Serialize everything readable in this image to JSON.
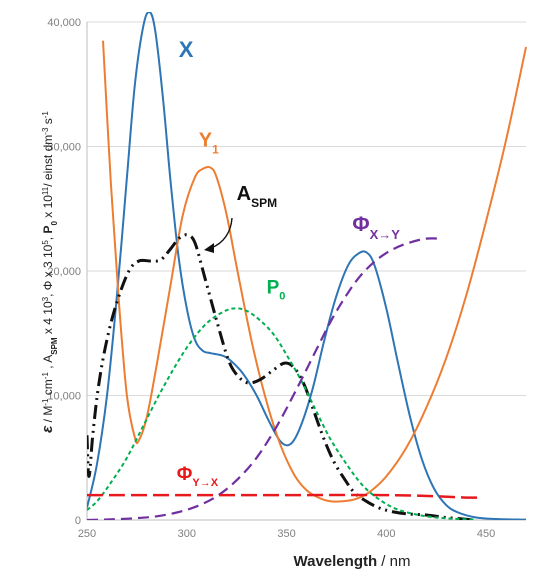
{
  "chart_data": {
    "type": "line",
    "xlabel": "Wavelength  / nm",
    "ylabel": "ε / M⁻¹ cm⁻¹ , A_SPM x 4 10³, Φ x 3 10⁵, P₀ x 10¹¹/ einst dm⁻³ s⁻¹",
    "ylabel_parts": {
      "eps": "ε",
      "p1": " / M",
      "sup1": "-1",
      "p2": " cm",
      "sup2": "-1",
      "p3": " , A",
      "sub_spm": "SPM",
      "p4": " x 4 10",
      "sup3": "3",
      "p5": ", Φ x 3 10",
      "sup4": "5",
      "p6": ", ",
      "p0b": "P",
      "sub0": "0",
      "p7": "  x 10",
      "sup5": "11",
      "p8": "/ einst dm",
      "sup6": "-3",
      "p9": " s",
      "sup7": "-1"
    },
    "xlim": [
      250,
      470
    ],
    "ylim": [
      0,
      40000
    ],
    "xticks": [
      "250",
      "300",
      "350",
      "400",
      "450"
    ],
    "yticks": [
      "0",
      "10,000",
      "20,000",
      "30,000",
      "40,000"
    ],
    "grid": "horizontal",
    "series": [
      {
        "name": "X",
        "color": "#2e75b6",
        "dash": "solid",
        "points": [
          [
            250,
            1000
          ],
          [
            255,
            4500
          ],
          [
            260,
            10000
          ],
          [
            265,
            18000
          ],
          [
            270,
            27500
          ],
          [
            274,
            35000
          ],
          [
            278,
            39500
          ],
          [
            281,
            40800
          ],
          [
            284,
            39500
          ],
          [
            288,
            34000
          ],
          [
            292,
            27000
          ],
          [
            296,
            21000
          ],
          [
            300,
            17000
          ],
          [
            304,
            14500
          ],
          [
            308,
            13600
          ],
          [
            312,
            13400
          ],
          [
            318,
            13200
          ],
          [
            322,
            12800
          ],
          [
            328,
            11800
          ],
          [
            335,
            10000
          ],
          [
            341,
            8000
          ],
          [
            347,
            6300
          ],
          [
            352,
            6100
          ],
          [
            357,
            7500
          ],
          [
            363,
            10500
          ],
          [
            369,
            14500
          ],
          [
            375,
            18000
          ],
          [
            381,
            20500
          ],
          [
            386,
            21400
          ],
          [
            390,
            21500
          ],
          [
            394,
            20500
          ],
          [
            400,
            17000
          ],
          [
            406,
            12500
          ],
          [
            412,
            8200
          ],
          [
            418,
            4800
          ],
          [
            424,
            2500
          ],
          [
            430,
            1200
          ],
          [
            436,
            600
          ],
          [
            445,
            200
          ],
          [
            455,
            80
          ],
          [
            465,
            40
          ],
          [
            470,
            30
          ]
        ]
      },
      {
        "name": "Y",
        "label_sub": "1",
        "color": "#ed7d31",
        "dash": "solid",
        "points": [
          [
            258,
            38500
          ],
          [
            262,
            27000
          ],
          [
            266,
            17500
          ],
          [
            270,
            10000
          ],
          [
            274,
            6600
          ],
          [
            276,
            6400
          ],
          [
            280,
            8300
          ],
          [
            285,
            12500
          ],
          [
            292,
            19000
          ],
          [
            298,
            24500
          ],
          [
            304,
            27500
          ],
          [
            308,
            28200
          ],
          [
            312,
            28300
          ],
          [
            315,
            27500
          ],
          [
            320,
            24500
          ],
          [
            326,
            19500
          ],
          [
            333,
            14000
          ],
          [
            340,
            9500
          ],
          [
            347,
            6000
          ],
          [
            354,
            3600
          ],
          [
            360,
            2400
          ],
          [
            366,
            1800
          ],
          [
            372,
            1500
          ],
          [
            378,
            1500
          ],
          [
            385,
            1700
          ],
          [
            392,
            2300
          ],
          [
            400,
            3500
          ],
          [
            410,
            5800
          ],
          [
            420,
            9000
          ],
          [
            430,
            13000
          ],
          [
            440,
            18000
          ],
          [
            450,
            24000
          ],
          [
            460,
            30500
          ],
          [
            470,
            38000
          ]
        ]
      },
      {
        "name": "A",
        "label_sub": "SPM",
        "color": "#111111",
        "dash": "dashdot",
        "points": [
          [
            250,
            6800
          ],
          [
            251,
            3500
          ],
          [
            253,
            7000
          ],
          [
            256,
            11000
          ],
          [
            260,
            14500
          ],
          [
            265,
            17500
          ],
          [
            271,
            20000
          ],
          [
            276,
            20800
          ],
          [
            282,
            20800
          ],
          [
            287,
            20900
          ],
          [
            292,
            21800
          ],
          [
            296,
            22600
          ],
          [
            300,
            22900
          ],
          [
            304,
            22300
          ],
          [
            309,
            19500
          ],
          [
            315,
            16000
          ],
          [
            321,
            12800
          ],
          [
            326,
            11500
          ],
          [
            331,
            11000
          ],
          [
            337,
            11300
          ],
          [
            343,
            12000
          ],
          [
            349,
            12600
          ],
          [
            354,
            12200
          ],
          [
            359,
            10800
          ],
          [
            364,
            8600
          ],
          [
            369,
            6400
          ],
          [
            374,
            4600
          ],
          [
            379,
            3300
          ],
          [
            384,
            2200
          ],
          [
            390,
            1500
          ],
          [
            396,
            1000
          ],
          [
            402,
            700
          ],
          [
            410,
            500
          ],
          [
            420,
            400
          ],
          [
            430,
            200
          ],
          [
            440,
            60
          ],
          [
            445,
            0
          ]
        ]
      },
      {
        "name": "P",
        "label_sub": "0",
        "color": "#00b050",
        "dash": "dotted",
        "points": [
          [
            250,
            800
          ],
          [
            255,
            1500
          ],
          [
            262,
            3000
          ],
          [
            270,
            5000
          ],
          [
            278,
            7500
          ],
          [
            286,
            10000
          ],
          [
            294,
            12300
          ],
          [
            302,
            14300
          ],
          [
            310,
            15800
          ],
          [
            318,
            16700
          ],
          [
            324,
            17000
          ],
          [
            330,
            16800
          ],
          [
            337,
            16000
          ],
          [
            344,
            14800
          ],
          [
            351,
            13000
          ],
          [
            358,
            11000
          ],
          [
            365,
            8700
          ],
          [
            372,
            6500
          ],
          [
            380,
            4500
          ],
          [
            388,
            2800
          ],
          [
            396,
            1700
          ],
          [
            404,
            950
          ],
          [
            412,
            550
          ],
          [
            420,
            300
          ],
          [
            428,
            160
          ],
          [
            436,
            80
          ],
          [
            445,
            40
          ]
        ]
      },
      {
        "name": "Φ",
        "label_sub": "X→Y",
        "color": "#7030a0",
        "dash": "dashed",
        "points": [
          [
            250,
            0
          ],
          [
            262,
            50
          ],
          [
            275,
            150
          ],
          [
            285,
            300
          ],
          [
            295,
            600
          ],
          [
            305,
            1100
          ],
          [
            315,
            1900
          ],
          [
            325,
            3200
          ],
          [
            335,
            5000
          ],
          [
            345,
            7500
          ],
          [
            355,
            10500
          ],
          [
            365,
            13700
          ],
          [
            373,
            16200
          ],
          [
            381,
            18300
          ],
          [
            388,
            19800
          ],
          [
            396,
            21000
          ],
          [
            404,
            21800
          ],
          [
            412,
            22300
          ],
          [
            420,
            22600
          ],
          [
            427,
            22600
          ]
        ]
      },
      {
        "name": "Φ",
        "label_sub": "Y→X",
        "color": "#e8191c",
        "dash": "longdash",
        "points": [
          [
            250,
            2000
          ],
          [
            300,
            2000
          ],
          [
            350,
            2000
          ],
          [
            400,
            2000
          ],
          [
            425,
            1900
          ],
          [
            440,
            1800
          ],
          [
            447,
            1800
          ]
        ]
      }
    ],
    "labels": [
      {
        "text": "X",
        "sub": "",
        "color": "#2e75b6",
        "x": 296,
        "y": 37200,
        "size": 22
      },
      {
        "text": "Y",
        "sub": "1",
        "color": "#ed7d31",
        "x": 306,
        "y": 30000,
        "size": 20
      },
      {
        "text": "A",
        "sub": "SPM",
        "color": "#111111",
        "x": 325,
        "y": 25700,
        "size": 20
      },
      {
        "text": "P",
        "sub": "0",
        "color": "#00b050",
        "x": 340,
        "y": 18200,
        "size": 19
      },
      {
        "text": "Φ",
        "sub": "X→Y",
        "color": "#7030a0",
        "x": 383,
        "y": 23200,
        "size": 21
      },
      {
        "text": "Φ",
        "sub": "Y→X",
        "color": "#e8191c",
        "x": 295,
        "y": 3200,
        "size": 19
      }
    ]
  }
}
